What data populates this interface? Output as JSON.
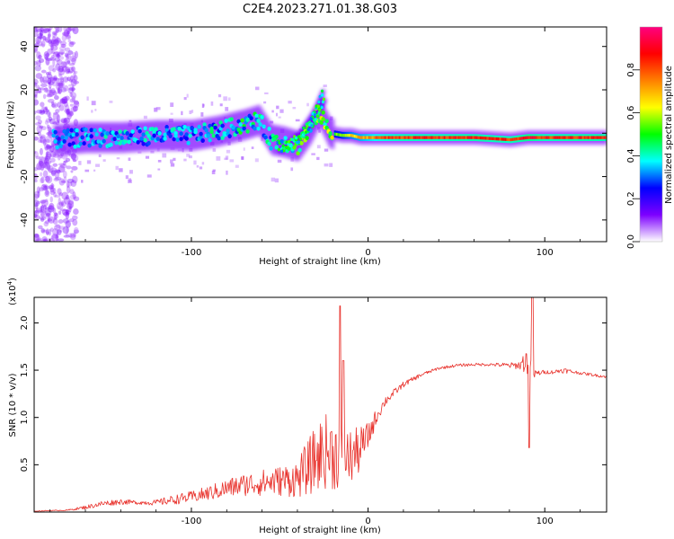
{
  "title": "C2E4.2023.271.01.38.G03",
  "chart_data": [
    {
      "type": "heatmap",
      "title": "",
      "xlabel": "Height of straight line (km)",
      "ylabel": "Frequency (Hz)",
      "xlim": [
        -189,
        135
      ],
      "ylim": [
        -50,
        49
      ],
      "xticks": [
        "-100",
        "0",
        "100"
      ],
      "xtick_values": [
        -100,
        0,
        100
      ],
      "yticks": [
        "-40",
        "-20",
        "0",
        "20",
        "40"
      ],
      "ytick_values": [
        -40,
        -20,
        0,
        20,
        40
      ],
      "colorbar": {
        "label": "Normalized spectral amplitude",
        "range": [
          0,
          1
        ],
        "ticks": [
          "0.0",
          "0.2",
          "0.4",
          "0.6",
          "0.8"
        ],
        "tick_values": [
          0.0,
          0.2,
          0.4,
          0.6,
          0.8
        ],
        "colormap": [
          "#ffffff",
          "#7d00ff",
          "#0000ff",
          "#00ffff",
          "#00ff00",
          "#ffff00",
          "#ff8000",
          "#ff0000",
          "#ff0080"
        ]
      },
      "frequency_track": {
        "x": [
          -175,
          -160,
          -140,
          -120,
          -100,
          -85,
          -70,
          -62,
          -55,
          -48,
          -40,
          -33,
          -28,
          -22,
          -15,
          -10,
          -5,
          0,
          5,
          20,
          40,
          60,
          80,
          90,
          100,
          120,
          135
        ],
        "y": [
          -3,
          -2,
          -2,
          -1,
          -1,
          1,
          4,
          6,
          -3,
          -4,
          -6,
          2,
          10,
          0,
          -1,
          -1,
          -2,
          -2,
          -2,
          -2,
          -2,
          -2,
          -3,
          -2,
          -2,
          -2,
          -2
        ],
        "amplitude": [
          0.3,
          0.35,
          0.35,
          0.35,
          0.35,
          0.4,
          0.45,
          0.4,
          0.4,
          0.45,
          0.5,
          0.5,
          0.55,
          0.55,
          0.6,
          0.7,
          0.75,
          0.8,
          0.85,
          0.9,
          0.9,
          0.92,
          0.9,
          0.95,
          0.9,
          0.92,
          0.92
        ]
      },
      "branches": [
        {
          "x": [
            -50,
            -38,
            -30,
            -25
          ],
          "y": [
            -8,
            0,
            10,
            20
          ],
          "amplitude": 0.3
        },
        {
          "x": [
            -40,
            -30,
            -24
          ],
          "y": [
            -4,
            6,
            16
          ],
          "amplitude": 0.3
        }
      ],
      "noise_region_x": [
        -189,
        -165
      ]
    },
    {
      "type": "line",
      "title": "",
      "xlabel": "Height of straight line (km)",
      "ylabel": "SNR (10 * v/v)",
      "y_scale_label": "(x10",
      "y_scale_exponent": "4",
      "xlim": [
        -189,
        135
      ],
      "ylim": [
        0,
        2.27
      ],
      "xticks": [
        "-100",
        "0",
        "100"
      ],
      "xtick_values": [
        -100,
        0,
        100
      ],
      "yticks": [
        "0.5",
        "1.0",
        "1.5",
        "2.0"
      ],
      "ytick_values": [
        0.5,
        1.0,
        1.5,
        2.0
      ],
      "line_color": "#e8302a",
      "series": [
        {
          "x": [
            -189,
            -170,
            -160,
            -150,
            -140,
            -130,
            -120,
            -110,
            -100,
            -90,
            -80,
            -70,
            -60,
            -50,
            -40,
            -35,
            -30,
            -25,
            -20,
            -15,
            -10,
            -5,
            0,
            5,
            10,
            20,
            30,
            40,
            50,
            60,
            70,
            80,
            85,
            88,
            90,
            92,
            94,
            96,
            100,
            105,
            110,
            120,
            135
          ],
          "y": [
            0.01,
            0.02,
            0.05,
            0.09,
            0.11,
            0.1,
            0.1,
            0.13,
            0.16,
            0.2,
            0.25,
            0.29,
            0.31,
            0.33,
            0.35,
            0.45,
            0.55,
            0.65,
            0.62,
            0.6,
            0.58,
            0.65,
            0.8,
            1.02,
            1.18,
            1.35,
            1.45,
            1.52,
            1.55,
            1.56,
            1.56,
            1.55,
            1.55,
            1.58,
            1.6,
            1.5,
            1.45,
            1.47,
            1.48,
            1.48,
            1.5,
            1.47,
            1.43
          ],
          "noise": [
            0.003,
            0.006,
            0.02,
            0.03,
            0.03,
            0.02,
            0.03,
            0.05,
            0.06,
            0.08,
            0.1,
            0.12,
            0.14,
            0.16,
            0.2,
            0.28,
            0.35,
            0.4,
            0.4,
            0.35,
            0.3,
            0.25,
            0.15,
            0.08,
            0.05,
            0.03,
            0.02,
            0.015,
            0.015,
            0.015,
            0.015,
            0.03,
            0.04,
            0.1,
            0.15,
            0.12,
            0.06,
            0.03,
            0.02,
            0.02,
            0.03,
            0.015,
            0.015
          ]
        }
      ],
      "spikes": [
        {
          "x": -16,
          "y": 2.18
        },
        {
          "x": -14,
          "y": 1.6
        },
        {
          "x": 93,
          "y": 2.27
        },
        {
          "x": 91,
          "y": 0.68
        }
      ]
    }
  ]
}
